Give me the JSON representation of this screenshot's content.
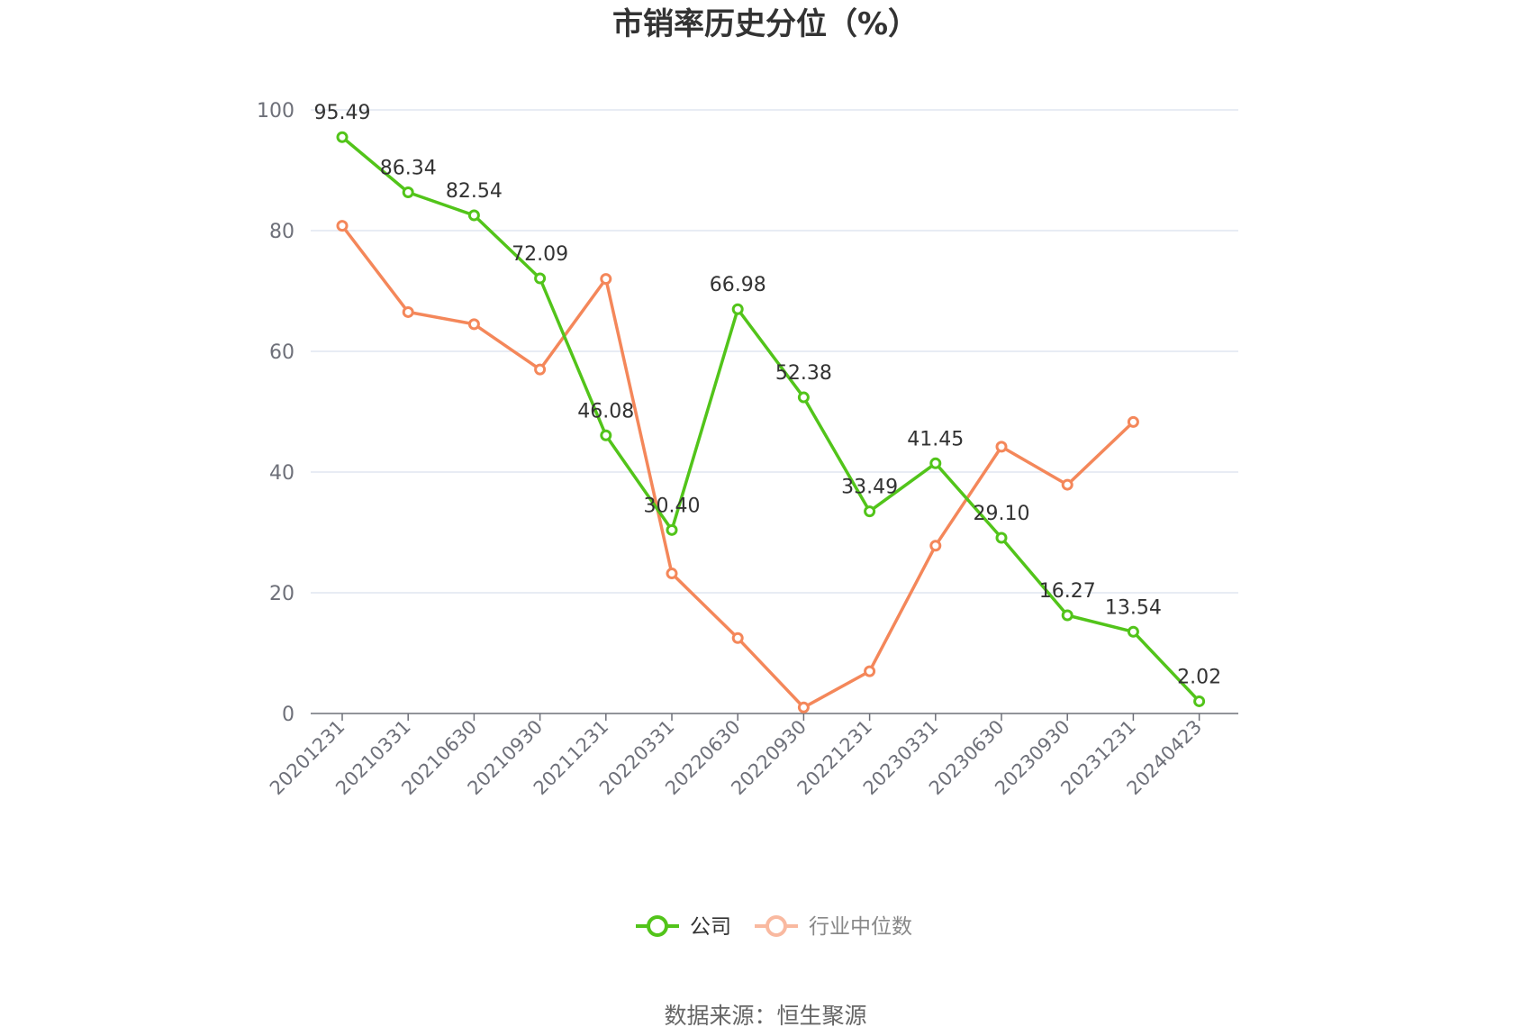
{
  "chart_data": {
    "type": "line",
    "title": "市销率历史分位（%）",
    "categories": [
      "20201231",
      "20210331",
      "20210630",
      "20210930",
      "20211231",
      "20220331",
      "20220630",
      "20220930",
      "20221231",
      "20230331",
      "20230630",
      "20230930",
      "20231231",
      "20240423"
    ],
    "series": [
      {
        "name": "公司",
        "color": "#52c41a",
        "values": [
          95.49,
          86.34,
          82.54,
          72.09,
          46.08,
          30.4,
          66.98,
          52.38,
          33.49,
          41.45,
          29.1,
          16.27,
          13.54,
          2.02
        ],
        "labels": [
          "95.49",
          "86.34",
          "82.54",
          "72.09",
          "46.08",
          "30.40",
          "66.98",
          "52.38",
          "33.49",
          "41.45",
          "29.10",
          "16.27",
          "13.54",
          "2.02"
        ]
      },
      {
        "name": "行业中位数",
        "color": "#f4875a",
        "values": [
          80.8,
          66.5,
          64.5,
          57.0,
          72.0,
          23.2,
          12.5,
          1.0,
          7.0,
          27.8,
          44.2,
          37.9,
          48.3,
          null
        ]
      }
    ],
    "ylim": [
      0,
      100
    ],
    "yticks": [
      0,
      20,
      40,
      60,
      80,
      100
    ],
    "grid": true,
    "legend_position": "bottom"
  },
  "source": "数据来源：恒生聚源"
}
